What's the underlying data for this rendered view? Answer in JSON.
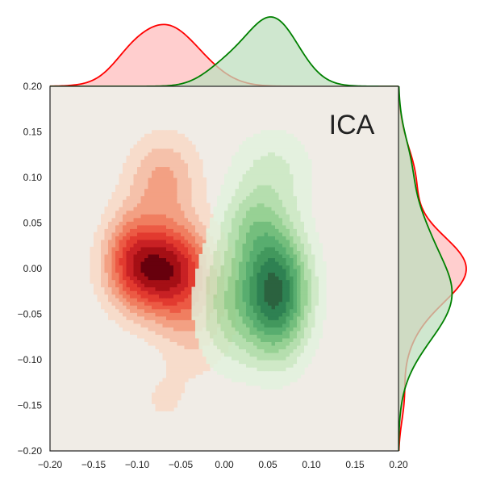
{
  "chart_data": {
    "type": "heatmap",
    "subtype": "joint-kde",
    "annotation": "ICA",
    "xlim": [
      -0.2,
      0.2
    ],
    "ylim": [
      -0.2,
      0.2
    ],
    "xticks": [
      "−0.20",
      "−0.15",
      "−0.10",
      "−0.05",
      "0.00",
      "0.05",
      "0.10",
      "0.15",
      "0.20"
    ],
    "yticks": [
      "−0.20",
      "−0.15",
      "−0.10",
      "−0.05",
      "0.00",
      "0.05",
      "0.10",
      "0.15",
      "0.20"
    ],
    "xtick_values": [
      -0.2,
      -0.15,
      -0.1,
      -0.05,
      0,
      0.05,
      0.1,
      0.15,
      0.2
    ],
    "ytick_values": [
      -0.2,
      -0.15,
      -0.1,
      -0.05,
      0,
      0.05,
      0.1,
      0.15,
      0.2
    ],
    "grid": false,
    "background": "#f0ece6",
    "series": [
      {
        "color": "#ff0000",
        "fill": "#ffbdbd",
        "colormap": [
          "#f7dccb",
          "#f5c1aa",
          "#f3a083",
          "#f07e60",
          "#ec5a44",
          "#e23a2f",
          "#c82124",
          "#a50f15",
          "#67000d"
        ],
        "components": [
          {
            "mx": -0.072,
            "my": 0.0,
            "sx": 0.038,
            "sy": 0.036,
            "w": 1.0
          },
          {
            "mx": -0.07,
            "my": 0.1,
            "sx": 0.03,
            "sy": 0.035,
            "w": 0.35
          },
          {
            "mx": -0.07,
            "my": -0.145,
            "sx": 0.025,
            "sy": 0.025,
            "w": 0.12
          },
          {
            "mx": -0.03,
            "my": -0.06,
            "sx": 0.03,
            "sy": 0.04,
            "w": 0.25
          },
          {
            "mx": -0.11,
            "my": 0.02,
            "sx": 0.02,
            "sy": 0.035,
            "w": 0.25
          }
        ]
      },
      {
        "color": "#008000",
        "fill": "#bfdfbf",
        "colormap": [
          "#e2f3de",
          "#c8e9c1",
          "#a9dca2",
          "#84cc83",
          "#5ab566",
          "#37a055",
          "#1c8640",
          "#046a32",
          "#00441b"
        ],
        "components": [
          {
            "mx": 0.058,
            "my": -0.025,
            "sx": 0.028,
            "sy": 0.05,
            "w": 1.0
          },
          {
            "mx": 0.055,
            "my": 0.11,
            "sx": 0.035,
            "sy": 0.035,
            "w": 0.22
          },
          {
            "mx": 0.0,
            "my": -0.04,
            "sx": 0.025,
            "sy": 0.05,
            "w": 0.3
          },
          {
            "mx": 0.03,
            "my": 0.05,
            "sx": 0.025,
            "sy": 0.03,
            "w": 0.25
          }
        ]
      }
    ]
  }
}
